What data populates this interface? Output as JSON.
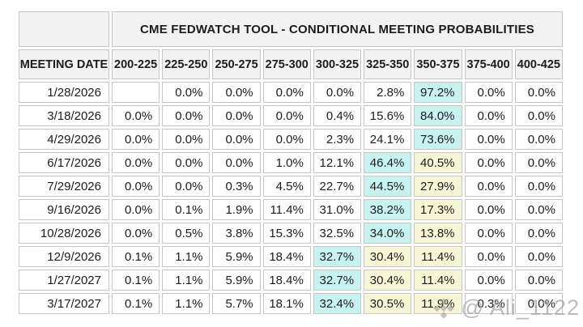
{
  "title": "CME FEDWATCH TOOL - CONDITIONAL MEETING PROBABILITIES",
  "table": {
    "date_header": "MEETING DATE",
    "rate_headers": [
      "200-225",
      "225-250",
      "250-275",
      "275-300",
      "300-325",
      "325-350",
      "350-375",
      "375-400",
      "400-425"
    ],
    "rows": [
      {
        "date": "1/28/2026",
        "values": [
          "",
          "0.0%",
          "0.0%",
          "0.0%",
          "0.0%",
          "2.8%",
          "97.2%",
          "0.0%",
          "0.0%"
        ],
        "highlights": [
          "",
          "",
          "",
          "",
          "",
          "",
          "cyan",
          "",
          ""
        ]
      },
      {
        "date": "3/18/2026",
        "values": [
          "0.0%",
          "0.0%",
          "0.0%",
          "0.0%",
          "0.4%",
          "15.6%",
          "84.0%",
          "0.0%",
          "0.0%"
        ],
        "highlights": [
          "",
          "",
          "",
          "",
          "",
          "",
          "cyan",
          "",
          ""
        ]
      },
      {
        "date": "4/29/2026",
        "values": [
          "0.0%",
          "0.0%",
          "0.0%",
          "0.0%",
          "2.3%",
          "24.1%",
          "73.6%",
          "0.0%",
          "0.0%"
        ],
        "highlights": [
          "",
          "",
          "",
          "",
          "",
          "",
          "cyan",
          "",
          ""
        ]
      },
      {
        "date": "6/17/2026",
        "values": [
          "0.0%",
          "0.0%",
          "0.0%",
          "1.0%",
          "12.1%",
          "46.4%",
          "40.5%",
          "0.0%",
          "0.0%"
        ],
        "highlights": [
          "",
          "",
          "",
          "",
          "",
          "cyan",
          "yellow",
          "",
          ""
        ]
      },
      {
        "date": "7/29/2026",
        "values": [
          "0.0%",
          "0.0%",
          "0.3%",
          "4.5%",
          "22.7%",
          "44.5%",
          "27.9%",
          "0.0%",
          "0.0%"
        ],
        "highlights": [
          "",
          "",
          "",
          "",
          "",
          "cyan",
          "yellow",
          "",
          ""
        ]
      },
      {
        "date": "9/16/2026",
        "values": [
          "0.0%",
          "0.1%",
          "1.9%",
          "11.4%",
          "31.0%",
          "38.2%",
          "17.3%",
          "0.0%",
          "0.0%"
        ],
        "highlights": [
          "",
          "",
          "",
          "",
          "",
          "cyan",
          "yellow",
          "",
          ""
        ]
      },
      {
        "date": "10/28/2026",
        "values": [
          "0.0%",
          "0.5%",
          "3.8%",
          "15.3%",
          "32.5%",
          "34.0%",
          "13.8%",
          "0.0%",
          "0.0%"
        ],
        "highlights": [
          "",
          "",
          "",
          "",
          "",
          "cyan",
          "yellow",
          "",
          ""
        ]
      },
      {
        "date": "12/9/2026",
        "values": [
          "0.1%",
          "1.1%",
          "5.9%",
          "18.4%",
          "32.7%",
          "30.4%",
          "11.4%",
          "0.0%",
          "0.0%"
        ],
        "highlights": [
          "",
          "",
          "",
          "",
          "cyan",
          "yellow",
          "yellow",
          "",
          ""
        ]
      },
      {
        "date": "1/27/2027",
        "values": [
          "0.1%",
          "1.1%",
          "5.9%",
          "18.4%",
          "32.7%",
          "30.4%",
          "11.4%",
          "0.0%",
          "0.0%"
        ],
        "highlights": [
          "",
          "",
          "",
          "",
          "cyan",
          "yellow",
          "yellow",
          "",
          ""
        ]
      },
      {
        "date": "3/17/2027",
        "values": [
          "0.1%",
          "1.1%",
          "5.7%",
          "18.1%",
          "32.4%",
          "30.5%",
          "11.9%",
          "0.3%",
          "0.0%"
        ],
        "highlights": [
          "",
          "",
          "",
          "",
          "cyan",
          "yellow",
          "yellow",
          "",
          ""
        ]
      }
    ]
  },
  "watermark": {
    "text": "@ Ali_1122",
    "icon": "binance-diamond-icon"
  },
  "colors": {
    "highlight_cyan": "#c7f2f0",
    "highlight_yellow": "#f6f6d7",
    "header_bg": "#f2f2f2",
    "cell_border": "#c6c6c6",
    "watermark_gray": "#a3a3a3"
  },
  "chart_data": {
    "type": "table",
    "title": "CME FEDWATCH TOOL - CONDITIONAL MEETING PROBABILITIES",
    "row_label": "MEETING DATE",
    "columns": [
      "200-225",
      "225-250",
      "250-275",
      "275-300",
      "300-325",
      "325-350",
      "350-375",
      "375-400",
      "400-425"
    ],
    "rows": [
      "1/28/2026",
      "3/18/2026",
      "4/29/2026",
      "6/17/2026",
      "7/29/2026",
      "9/16/2026",
      "10/28/2026",
      "12/9/2026",
      "1/27/2027",
      "3/17/2027"
    ],
    "values_pct": [
      [
        null,
        0.0,
        0.0,
        0.0,
        0.0,
        2.8,
        97.2,
        0.0,
        0.0
      ],
      [
        0.0,
        0.0,
        0.0,
        0.0,
        0.4,
        15.6,
        84.0,
        0.0,
        0.0
      ],
      [
        0.0,
        0.0,
        0.0,
        0.0,
        2.3,
        24.1,
        73.6,
        0.0,
        0.0
      ],
      [
        0.0,
        0.0,
        0.0,
        1.0,
        12.1,
        46.4,
        40.5,
        0.0,
        0.0
      ],
      [
        0.0,
        0.0,
        0.3,
        4.5,
        22.7,
        44.5,
        27.9,
        0.0,
        0.0
      ],
      [
        0.0,
        0.1,
        1.9,
        11.4,
        31.0,
        38.2,
        17.3,
        0.0,
        0.0
      ],
      [
        0.0,
        0.5,
        3.8,
        15.3,
        32.5,
        34.0,
        13.8,
        0.0,
        0.0
      ],
      [
        0.1,
        1.1,
        5.9,
        18.4,
        32.7,
        30.4,
        11.4,
        0.0,
        0.0
      ],
      [
        0.1,
        1.1,
        5.9,
        18.4,
        32.7,
        30.4,
        11.4,
        0.0,
        0.0
      ],
      [
        0.1,
        1.1,
        5.7,
        18.1,
        32.4,
        30.5,
        11.9,
        0.3,
        0.0
      ]
    ],
    "cyan_highlight_cells": [
      [
        0,
        6
      ],
      [
        1,
        6
      ],
      [
        2,
        6
      ],
      [
        3,
        5
      ],
      [
        4,
        5
      ],
      [
        5,
        5
      ],
      [
        6,
        5
      ],
      [
        7,
        4
      ],
      [
        8,
        4
      ],
      [
        9,
        4
      ]
    ],
    "yellow_highlight_cells": [
      [
        3,
        6
      ],
      [
        4,
        6
      ],
      [
        5,
        6
      ],
      [
        6,
        6
      ],
      [
        7,
        5
      ],
      [
        7,
        6
      ],
      [
        8,
        5
      ],
      [
        8,
        6
      ],
      [
        9,
        5
      ],
      [
        9,
        6
      ]
    ]
  }
}
